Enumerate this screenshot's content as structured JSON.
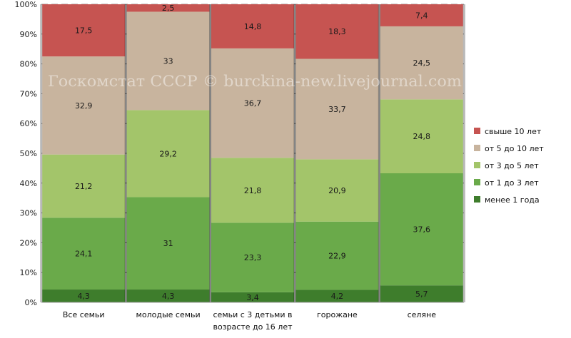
{
  "chart_data": {
    "type": "bar",
    "stacked": true,
    "normalized": true,
    "categories": [
      [
        "Все семьи"
      ],
      [
        "молодые семьи"
      ],
      [
        "семьи с 3 детьми в",
        "возрасте до 16 лет"
      ],
      [
        "горожане"
      ],
      [
        "селяне"
      ]
    ],
    "series": [
      {
        "name": "менее 1 года",
        "color": "#3e7d2c",
        "values": [
          4.3,
          4.3,
          3.4,
          4.2,
          5.7
        ],
        "labels": [
          "4,3",
          "4,3",
          "3,4",
          "4,2",
          "5,7"
        ]
      },
      {
        "name": "от 1 до 3 лет",
        "color": "#6aaa4a",
        "values": [
          24.1,
          31,
          23.3,
          22.9,
          37.6
        ],
        "labels": [
          "24,1",
          "31",
          "23,3",
          "22,9",
          "37,6"
        ]
      },
      {
        "name": "от 3 до 5 лет",
        "color": "#a3c56a",
        "values": [
          21.2,
          29.2,
          21.8,
          20.9,
          24.8
        ],
        "labels": [
          "21,2",
          "29,2",
          "21,8",
          "20,9",
          "24,8"
        ]
      },
      {
        "name": "от 5 до 10 лет",
        "color": "#c8b49e",
        "values": [
          32.9,
          33,
          36.7,
          33.7,
          24.5
        ],
        "labels": [
          "32,9",
          "33",
          "36,7",
          "33,7",
          "24,5"
        ]
      },
      {
        "name": "свыше 10 лет",
        "color": "#c65451",
        "values": [
          17.5,
          2.5,
          14.8,
          18.3,
          7.4
        ],
        "labels": [
          "17,5",
          "2,5",
          "14,8",
          "18,3",
          "7,4"
        ]
      }
    ],
    "yticks": [
      "0%",
      "10%",
      "20%",
      "30%",
      "40%",
      "50%",
      "60%",
      "70%",
      "80%",
      "90%",
      "100%"
    ],
    "ylim": [
      0,
      100
    ],
    "grid": true,
    "legend_position": "right",
    "legend_order": [
      "свыше 10 лет",
      "от 5 до 10 лет",
      "от 3 до 5 лет",
      "от 1 до 3 лет",
      "менее 1 года"
    ],
    "watermark": "Госкомстат СССР © burckina-new.livejournal.com"
  }
}
